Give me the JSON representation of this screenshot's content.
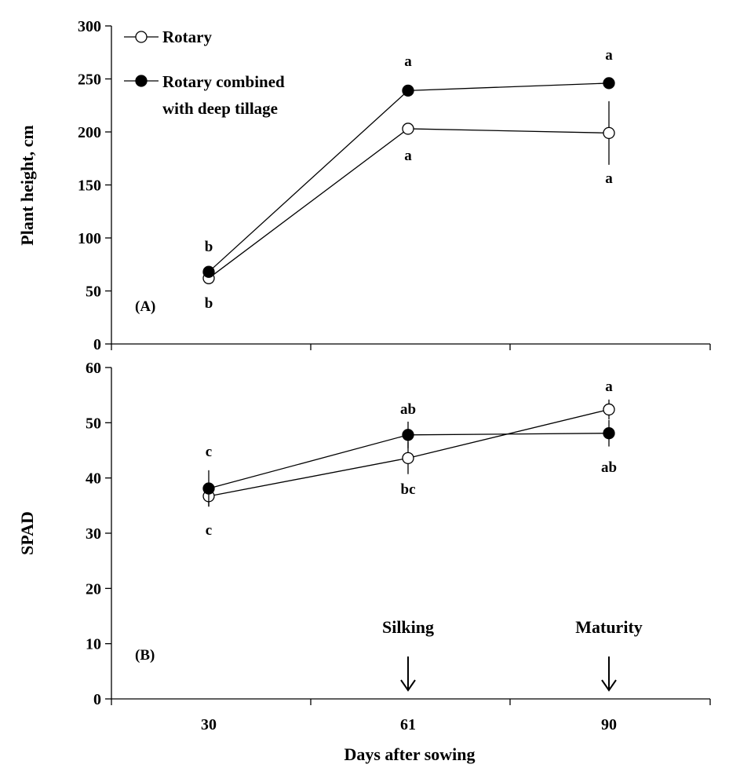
{
  "chart_data": [
    {
      "type": "line",
      "panel_label": "(A)",
      "ylabel": "Plant height, cm",
      "ylim": [
        0,
        300
      ],
      "yticks": [
        "0",
        "50",
        "100",
        "150",
        "200",
        "250",
        "300"
      ],
      "x": [
        30,
        61,
        90
      ],
      "series": [
        {
          "name": "Rotary",
          "marker": "open-circle",
          "values": [
            62,
            203,
            199
          ],
          "error": [
            null,
            null,
            30
          ],
          "letters": [
            "b",
            "a",
            "a"
          ]
        },
        {
          "name": "Rotary combined with deep tillage",
          "marker": "filled-circle",
          "values": [
            68,
            239,
            246
          ],
          "error": [
            null,
            null,
            null
          ],
          "letters": [
            "b",
            "a",
            "a"
          ]
        }
      ],
      "legend": {
        "position": "top-left",
        "items": [
          {
            "lines": [
              "Rotary"
            ],
            "marker": "open-circle"
          },
          {
            "lines": [
              "Rotary combined",
              "with deep tillage"
            ],
            "marker": "filled-circle"
          }
        ]
      }
    },
    {
      "type": "line",
      "panel_label": "(B)",
      "ylabel": "SPAD",
      "ylim": [
        0,
        60
      ],
      "yticks": [
        "0",
        "10",
        "20",
        "30",
        "40",
        "50",
        "60"
      ],
      "x": [
        30,
        61,
        90
      ],
      "xlabel": "Days after sowing",
      "xticks": [
        "30",
        "61",
        "90"
      ],
      "series": [
        {
          "name": "Rotary",
          "marker": "open-circle",
          "values": [
            36.7,
            43.6,
            52.4
          ],
          "error": [
            1.8,
            2.9,
            1.8
          ],
          "letters": [
            "c",
            "bc",
            "a"
          ]
        },
        {
          "name": "Rotary combined with deep tillage",
          "marker": "filled-circle",
          "values": [
            38.1,
            47.8,
            48.1
          ],
          "error": [
            3.3,
            2.4,
            2.4
          ],
          "letters": [
            "c",
            "ab",
            "ab"
          ]
        }
      ],
      "annotations": [
        {
          "text": "Silking",
          "x": 61,
          "arrow": true
        },
        {
          "text": "Maturity",
          "x": 90,
          "arrow": true
        }
      ]
    }
  ]
}
